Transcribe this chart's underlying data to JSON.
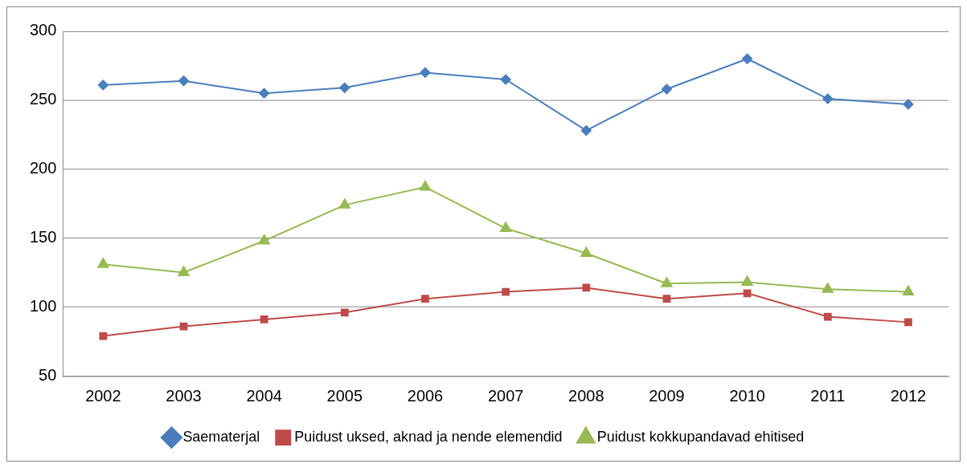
{
  "chart_data": {
    "type": "line",
    "categories": [
      "2002",
      "2003",
      "2004",
      "2005",
      "2006",
      "2007",
      "2008",
      "2009",
      "2010",
      "2011",
      "2012"
    ],
    "series": [
      {
        "name": "Saematerjal",
        "color": "#4a7ebb",
        "marker": "diamond",
        "values": [
          261,
          264,
          255,
          259,
          270,
          265,
          228,
          258,
          280,
          251,
          247
        ]
      },
      {
        "name": "Puidust uksed, aknad ja nende elemendid",
        "color": "#be4b48",
        "marker": "square",
        "values": [
          79,
          86,
          91,
          96,
          106,
          111,
          114,
          106,
          110,
          93,
          89
        ]
      },
      {
        "name": "Puidust kokkupandavad ehitised",
        "color": "#98b954",
        "marker": "triangle",
        "values": [
          131,
          125,
          148,
          174,
          187,
          157,
          139,
          117,
          118,
          113,
          111
        ]
      }
    ],
    "ylim": [
      50,
      300
    ],
    "yticks": [
      50,
      100,
      150,
      200,
      250,
      300
    ],
    "grid": "y",
    "legend": "bottom",
    "line_style": "solid"
  }
}
